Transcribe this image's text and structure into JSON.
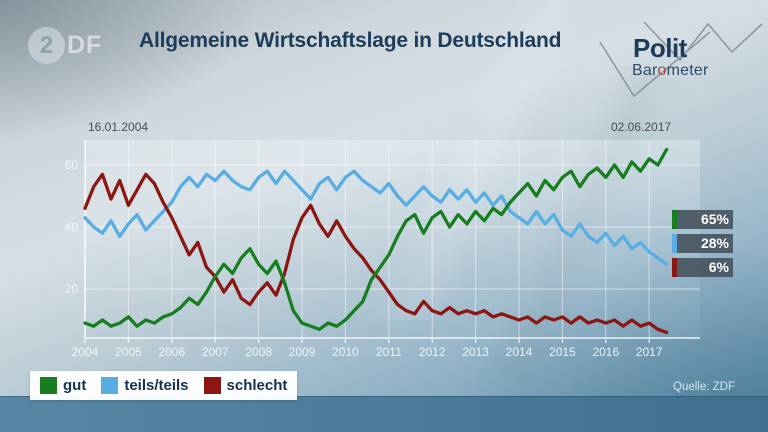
{
  "header": {
    "title": "Allgemeine Wirtschaftslage in Deutschland",
    "zdf": {
      "disc_char": "2",
      "suffix": "DF"
    },
    "polit": {
      "line1": "Polit",
      "line2_pre": "Bar",
      "line2_o": "o",
      "line2_post": "meter"
    }
  },
  "chart_data": {
    "type": "line",
    "title": "Allgemeine Wirtschaftslage in Deutschland",
    "start_date_label": "16.01.2004",
    "end_date_label": "02.06.2017",
    "x_start": 2004.0,
    "x_step": 0.2,
    "x_ticks": [
      2004,
      2005,
      2006,
      2007,
      2008,
      2009,
      2010,
      2011,
      2012,
      2013,
      2014,
      2015,
      2016,
      2017
    ],
    "y_ticks": [
      20,
      40,
      60
    ],
    "ylim": [
      4,
      68
    ],
    "grid": true,
    "unit": "%",
    "legend_position": "bottom-left",
    "series": [
      {
        "name": "gut",
        "color": "#177d1e",
        "end_label": "65%",
        "values": [
          9,
          8,
          10,
          8,
          9,
          11,
          8,
          10,
          9,
          11,
          12,
          14,
          17,
          15,
          19,
          24,
          28,
          25,
          30,
          33,
          28,
          25,
          29,
          22,
          13,
          9,
          8,
          7,
          9,
          8,
          10,
          13,
          16,
          23,
          27,
          31,
          37,
          42,
          44,
          38,
          43,
          45,
          40,
          44,
          41,
          45,
          42,
          46,
          44,
          48,
          51,
          54,
          50,
          55,
          52,
          56,
          58,
          53,
          57,
          59,
          56,
          60,
          56,
          61,
          58,
          62,
          60,
          65
        ]
      },
      {
        "name": "teils/teils",
        "color": "#58ade2",
        "end_label": "28%",
        "values": [
          43,
          40,
          38,
          42,
          37,
          41,
          44,
          39,
          42,
          45,
          48,
          53,
          56,
          53,
          57,
          55,
          58,
          55,
          53,
          52,
          56,
          58,
          54,
          58,
          55,
          52,
          49,
          54,
          56,
          52,
          56,
          58,
          55,
          53,
          51,
          54,
          50,
          47,
          50,
          53,
          50,
          48,
          52,
          49,
          52,
          48,
          51,
          47,
          50,
          45,
          43,
          41,
          45,
          41,
          44,
          39,
          37,
          41,
          37,
          35,
          38,
          34,
          37,
          33,
          35,
          32,
          30,
          28
        ]
      },
      {
        "name": "schlecht",
        "color": "#8c1712",
        "end_label": "6%",
        "values": [
          46,
          53,
          57,
          49,
          55,
          47,
          52,
          57,
          54,
          48,
          43,
          37,
          31,
          35,
          27,
          24,
          19,
          23,
          17,
          15,
          19,
          22,
          18,
          25,
          36,
          43,
          47,
          41,
          37,
          42,
          37,
          33,
          30,
          26,
          23,
          19,
          15,
          13,
          12,
          16,
          13,
          12,
          14,
          12,
          13,
          12,
          13,
          11,
          12,
          11,
          10,
          11,
          9,
          11,
          10,
          11,
          9,
          11,
          9,
          10,
          9,
          10,
          8,
          10,
          8,
          9,
          7,
          6
        ]
      }
    ],
    "source": "Quelle: ZDF"
  },
  "footer": {
    "source": "Quelle: ZDF"
  }
}
